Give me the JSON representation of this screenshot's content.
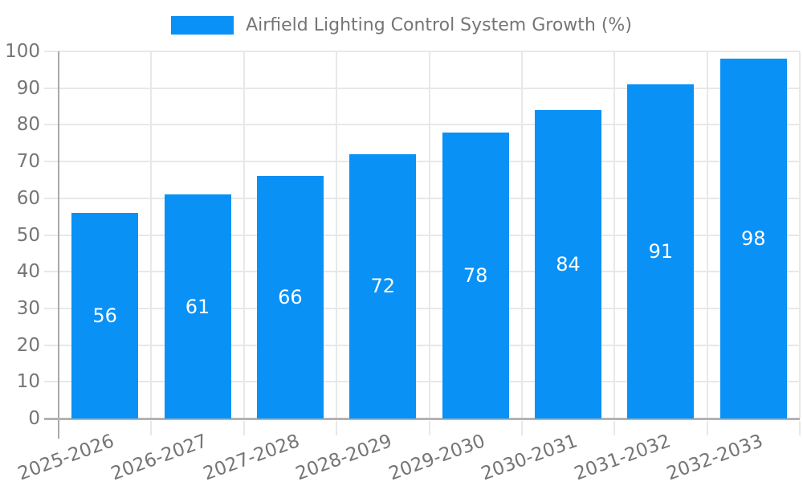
{
  "legend": {
    "items": [
      {
        "label": "Airfield Lighting Control System Growth (%)",
        "color": "#0991f6"
      }
    ],
    "position": "top"
  },
  "chart_data": {
    "type": "bar",
    "title": "",
    "categories": [
      "2025-2026",
      "2026-2027",
      "2027-2028",
      "2028-2029",
      "2029-2030",
      "2030-2031",
      "2031-2032",
      "2032-2033"
    ],
    "series": [
      {
        "name": "Airfield Lighting Control System Growth (%)",
        "values": [
          56,
          61,
          66,
          72,
          78,
          84,
          91,
          98
        ],
        "color": "#0991f6"
      }
    ],
    "value_labels": [
      "56",
      "61",
      "66",
      "72",
      "78",
      "84",
      "91",
      "98"
    ],
    "value_label_position": "inside-center",
    "xlabel": "",
    "ylabel": "",
    "ylim": [
      0,
      100
    ],
    "y_ticks": [
      0,
      10,
      20,
      30,
      40,
      50,
      60,
      70,
      80,
      90,
      100
    ],
    "y_tick_labels": [
      "0",
      "10",
      "20",
      "30",
      "40",
      "50",
      "60",
      "70",
      "80",
      "90",
      "100"
    ],
    "grid": true,
    "legend_position": "top",
    "x_label_rotation_deg": -20
  },
  "colors": {
    "bar": "#0991f6",
    "value_label_text": "#ffffff",
    "axis_text": "#757575",
    "legend_text": "#757575",
    "gridline": "#e8e8e8",
    "y_axis_line": "#a9a9a9",
    "x_axis_line": "#b3b3b3",
    "background": "#ffffff"
  }
}
